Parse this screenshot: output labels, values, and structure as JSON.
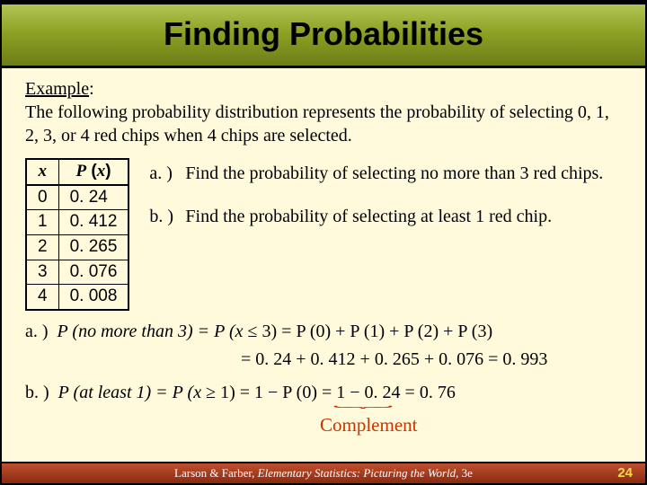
{
  "title": "Finding Probabilities",
  "example": {
    "label": "Example",
    "description": "The following probability distribution represents the probability of selecting 0, 1, 2, 3, or 4 red chips when 4 chips are selected."
  },
  "table": {
    "col_x": "x",
    "col_px_P": "P",
    "col_px_x": "x",
    "rows": [
      {
        "x": "0",
        "px": "0. 24"
      },
      {
        "x": "1",
        "px": "0. 412"
      },
      {
        "x": "2",
        "px": "0. 265"
      },
      {
        "x": "3",
        "px": "0. 076"
      },
      {
        "x": "4",
        "px": "0. 008"
      }
    ]
  },
  "questions": {
    "a_label": "a. )",
    "a_text": "Find the probability of selecting no more than 3 red chips.",
    "b_label": "b. )",
    "b_text": "Find the probability of selecting at least 1 red chip."
  },
  "solutions": {
    "a_label": "a. )",
    "a_line1_pre": "P (no more than 3) = P (x",
    "a_line1_sym": " ≤ ",
    "a_line1_post": "3) = P (0) + P (1) + P (2) + P (3)",
    "a_line2": "= 0. 24 + 0. 412 + 0. 265 + 0. 076 = 0. 993",
    "b_label": "b. )",
    "b_pre": "P (at least 1) = P (x",
    "b_sym": " ≥ ",
    "b_post": "1) = 1 − P (0) = 1 − 0. 24 = 0. 76",
    "complement": "Complement"
  },
  "footer": {
    "authors": "Larson & Farber, ",
    "book": "Elementary Statistics: Picturing the World",
    "edition": ", 3e",
    "page": "24"
  },
  "colors": {
    "background": "#fefadb",
    "accent": "#cc3300",
    "footer_page": "#f7d94a"
  }
}
